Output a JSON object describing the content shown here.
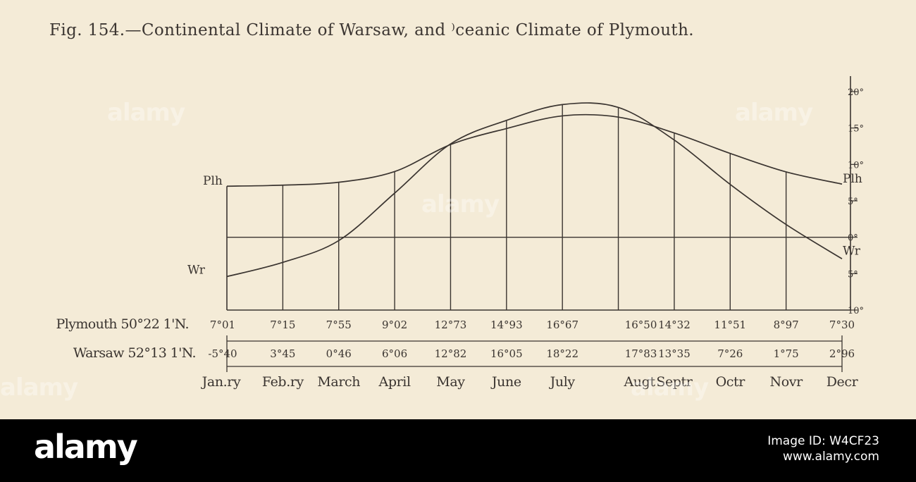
{
  "figure": {
    "caption": "Fig. 154.—Continental Climate of Warsaw, and ⁾ceanic Climate of Plymouth."
  },
  "chart_data": {
    "type": "line",
    "title": "Fig. 154.—Continental Climate of Warsaw, and ⁾ceanic Climate of Plymouth.",
    "categories": [
      "Janʸ",
      "Febʸ",
      "March",
      "April",
      "May",
      "June",
      "July",
      "Augᵗ",
      "Septʳ",
      "Octʳ",
      "Novʳ",
      "Decʳ"
    ],
    "category_labels": [
      "Jan.ry",
      "Feb.ry",
      "March",
      "April",
      "May",
      "June",
      "July",
      "Augt",
      "Septr",
      "Octr",
      "Novr",
      "Decr"
    ],
    "series": [
      {
        "name": "Plymouth",
        "label": "Plymouth 50°22 1'N.",
        "short_label": "Plh",
        "values": [
          7.01,
          7.15,
          7.55,
          9.02,
          12.73,
          14.93,
          16.67,
          16.5,
          14.32,
          11.51,
          8.97,
          7.3
        ],
        "value_labels": [
          "7°01",
          "7°15",
          "7°55",
          "9°02",
          "12°73",
          "14°93",
          "16°67",
          "16°50",
          "14°32",
          "11°51",
          "8°97",
          "7°30"
        ]
      },
      {
        "name": "Warsaw",
        "label": "Warsaw 52°13 1'N.",
        "short_label": "Wr",
        "values": [
          -5.4,
          -3.45,
          -0.46,
          6.06,
          12.82,
          16.05,
          18.22,
          17.83,
          13.35,
          7.26,
          1.75,
          -2.96
        ],
        "value_labels": [
          "-5°40",
          "3°45",
          "0°46",
          "6°06",
          "12°82",
          "16°05",
          "18°22",
          "17°83",
          "13°35",
          "7°26",
          "1°75",
          "2°96"
        ]
      }
    ],
    "scale_ticks": [
      "20°",
      "15°",
      "10°",
      "5°",
      "0°",
      "5°",
      "10°"
    ],
    "ylim": [
      -10,
      20
    ],
    "xlabel": "",
    "ylabel": "",
    "grid": true,
    "ink_color": "#3a3430",
    "paper_color": "#f4ebd7"
  },
  "watermark": {
    "text": "alamy"
  },
  "footer": {
    "logo": "alamy",
    "image_id": "Image ID: W4CF23",
    "site": "www.alamy.com"
  }
}
